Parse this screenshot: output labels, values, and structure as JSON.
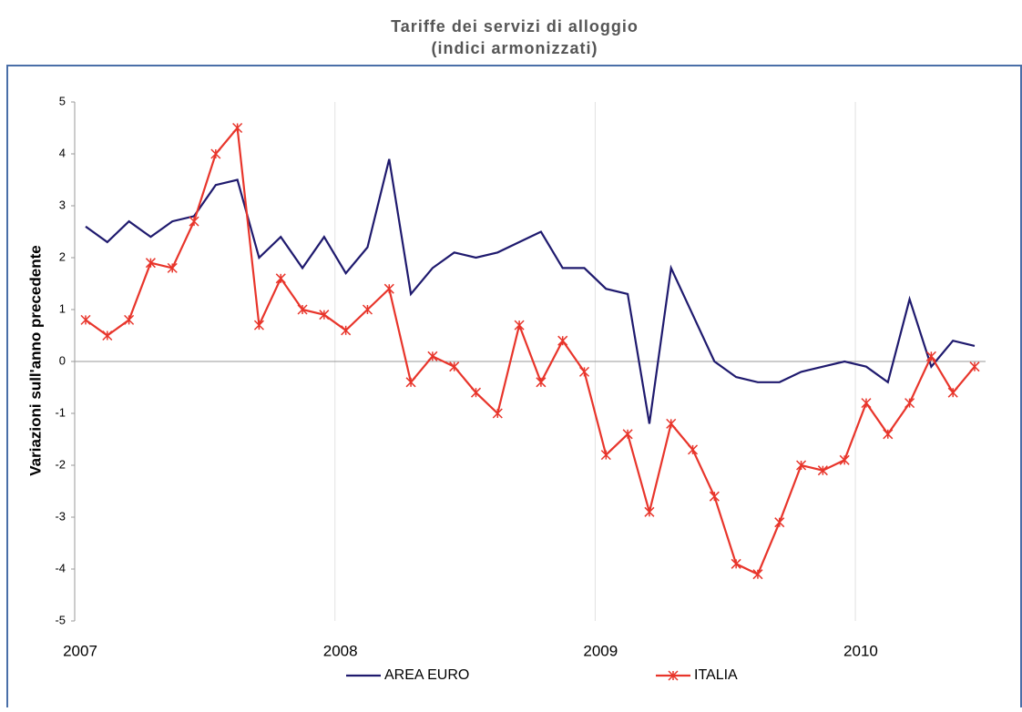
{
  "chart_data": {
    "type": "line",
    "title": "Tariffe dei servizi di alloggio",
    "subtitle": "(indici armonizzati)",
    "y_label": "Variazioni sull'anno precedente",
    "categories": [
      "2007",
      null,
      null,
      null,
      null,
      null,
      null,
      null,
      null,
      null,
      null,
      null,
      "2008",
      null,
      null,
      null,
      null,
      null,
      null,
      null,
      null,
      null,
      null,
      null,
      "2009",
      null,
      null,
      null,
      null,
      null,
      null,
      null,
      null,
      null,
      null,
      null,
      "2010",
      null,
      null,
      null,
      null,
      null
    ],
    "series": [
      {
        "name": "AREA EURO",
        "color": "#1f1a6e",
        "marker": false,
        "values": [
          2.6,
          2.3,
          2.7,
          2.4,
          2.7,
          2.8,
          3.4,
          3.5,
          2.0,
          2.4,
          1.8,
          2.4,
          1.7,
          2.2,
          3.9,
          1.3,
          1.8,
          2.1,
          2.0,
          2.1,
          2.3,
          2.5,
          1.8,
          1.8,
          1.4,
          1.3,
          -1.2,
          1.8,
          0.9,
          0.0,
          -0.3,
          -0.4,
          -0.4,
          -0.2,
          -0.1,
          0.0,
          -0.1,
          -0.4,
          1.2,
          -0.1,
          0.4,
          0.3
        ]
      },
      {
        "name": "ITALIA",
        "color": "#e8352b",
        "marker": true,
        "values": [
          0.8,
          0.5,
          0.8,
          1.9,
          1.8,
          2.7,
          4.0,
          4.5,
          0.7,
          1.6,
          1.0,
          0.9,
          0.6,
          1.0,
          1.4,
          -0.4,
          0.1,
          -0.1,
          -0.6,
          -1.0,
          0.7,
          -0.4,
          0.4,
          -0.2,
          -1.8,
          -1.4,
          -2.9,
          -1.2,
          -1.7,
          -2.6,
          -3.9,
          -4.1,
          -3.1,
          -2.0,
          -2.1,
          -1.9,
          -0.8,
          -1.4,
          -0.8,
          0.1,
          -0.6,
          -0.1
        ]
      }
    ],
    "ylim": [
      -5,
      5
    ],
    "yticks": [
      -5,
      -4,
      -3,
      -2,
      -1,
      0,
      1,
      2,
      3,
      4,
      5
    ],
    "grid": true,
    "legend": "bottom"
  }
}
